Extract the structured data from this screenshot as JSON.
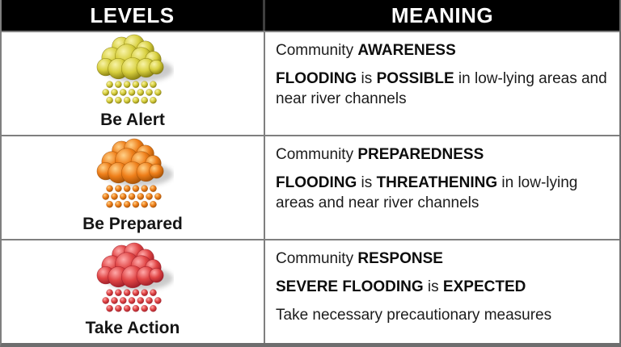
{
  "table": {
    "header": {
      "levels": "LEVELS",
      "meaning": "MEANING"
    },
    "colors": {
      "header_bg": "#000000",
      "header_text": "#ffffff",
      "border": "#7f7f7f",
      "row_bg": "#ffffff"
    },
    "rows": [
      {
        "level_label": "Be Alert",
        "icon": {
          "name": "yellow-rain-cloud-icon",
          "light": "#f8f3a8",
          "base": "#d8d040",
          "dark": "#6f6600"
        },
        "paragraphs": [
          [
            {
              "t": "Community ",
              "b": false
            },
            {
              "t": "AWARENESS",
              "b": true
            }
          ],
          [
            {
              "t": "FLOODING",
              "b": true
            },
            {
              "t": " is ",
              "b": false
            },
            {
              "t": "POSSIBLE",
              "b": true
            },
            {
              "t": " in low-lying areas and near river channels",
              "b": false
            }
          ]
        ]
      },
      {
        "level_label": "Be Prepared",
        "icon": {
          "name": "orange-rain-cloud-icon",
          "light": "#ffd28a",
          "base": "#ef7f1a",
          "dark": "#8f4400"
        },
        "paragraphs": [
          [
            {
              "t": "Community ",
              "b": false
            },
            {
              "t": "PREPAREDNESS",
              "b": true
            }
          ],
          [
            {
              "t": "FLOODING",
              "b": true
            },
            {
              "t": " is ",
              "b": false
            },
            {
              "t": "THREATHENING",
              "b": true
            },
            {
              "t": " in low-lying areas and near river channels",
              "b": false
            }
          ]
        ]
      },
      {
        "level_label": "Take Action",
        "icon": {
          "name": "red-rain-cloud-icon",
          "light": "#ffaaaa",
          "base": "#e04545",
          "dark": "#8c1220"
        },
        "paragraphs": [
          [
            {
              "t": "Community ",
              "b": false
            },
            {
              "t": "RESPONSE",
              "b": true
            }
          ],
          [
            {
              "t": "SEVERE FLOODING",
              "b": true
            },
            {
              "t": " is ",
              "b": false
            },
            {
              "t": "EXPECTED",
              "b": true
            }
          ],
          [
            {
              "t": "Take necessary precautionary measures",
              "b": false
            }
          ]
        ]
      }
    ]
  }
}
